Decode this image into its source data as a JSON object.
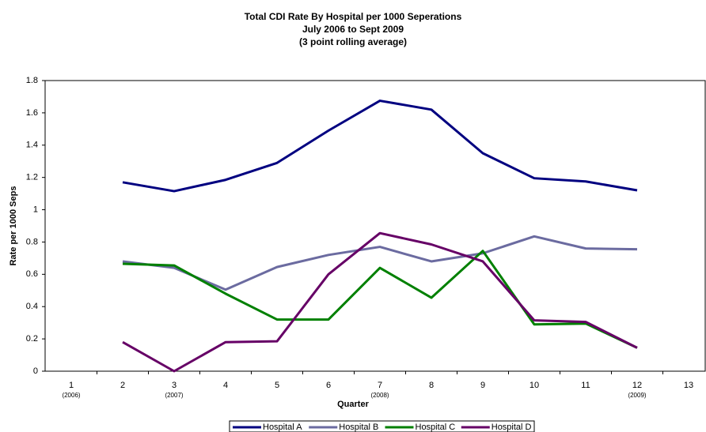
{
  "chart_data": {
    "type": "line",
    "title": [
      "Total CDI Rate By Hospital per 1000 Seperations",
      "July 2006 to Sept 2009",
      "(3 point rolling average)"
    ],
    "xlabel": "Quarter",
    "ylabel": "Rate per 1000 Seps",
    "categories": [
      "1",
      "2",
      "3",
      "4",
      "5",
      "6",
      "7",
      "8",
      "9",
      "10",
      "11",
      "12",
      "13"
    ],
    "category_sublabels": [
      "(2006)",
      null,
      "(2007)",
      null,
      null,
      null,
      "(2008)",
      null,
      null,
      null,
      null,
      "(2009)",
      null
    ],
    "ylim": [
      0,
      1.8
    ],
    "yticks": [
      0,
      0.2,
      0.4,
      0.6,
      0.8,
      1,
      1.2,
      1.4,
      1.6,
      1.8
    ],
    "grid": false,
    "legend": "bottom",
    "series": [
      {
        "name": "Hospital A",
        "color": "#000080",
        "values": [
          null,
          1.17,
          1.115,
          1.185,
          1.29,
          1.49,
          1.675,
          1.62,
          1.35,
          1.195,
          1.175,
          1.12,
          null
        ]
      },
      {
        "name": "Hospital B",
        "color": "#6b6ba0",
        "values": [
          null,
          0.68,
          0.64,
          0.505,
          0.645,
          0.72,
          0.77,
          0.68,
          0.73,
          0.835,
          0.76,
          0.755,
          null
        ]
      },
      {
        "name": "Hospital C",
        "color": "#008000",
        "values": [
          null,
          0.665,
          0.655,
          0.48,
          0.32,
          0.32,
          0.64,
          0.455,
          0.745,
          0.29,
          0.295,
          0.145,
          null
        ]
      },
      {
        "name": "Hospital D",
        "color": "#660066",
        "values": [
          null,
          0.18,
          0,
          0.18,
          0.185,
          0.6,
          0.855,
          0.785,
          0.68,
          0.315,
          0.305,
          0.145,
          null
        ]
      }
    ]
  }
}
